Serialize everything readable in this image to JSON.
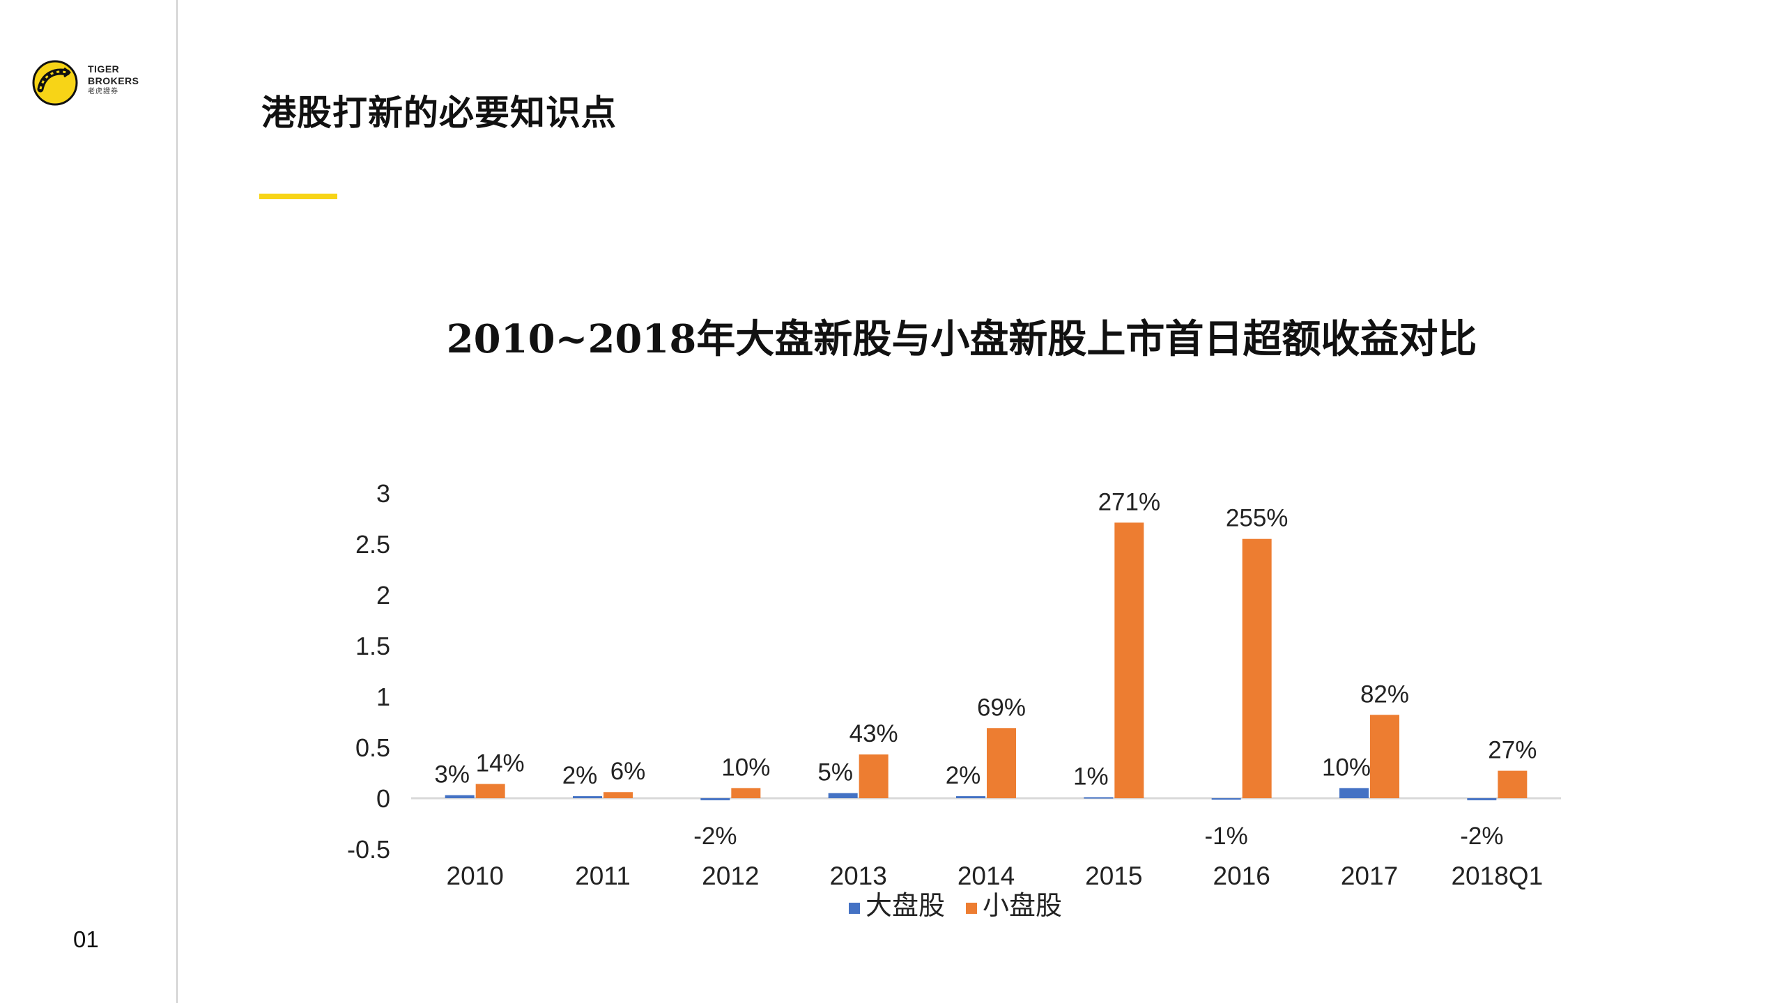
{
  "header": {
    "logo": {
      "brand_line1": "TIGER",
      "brand_line2": "BROKERS",
      "brand_cn": "老虎證券",
      "accent_color": "#f7d417",
      "icon": "tiger-logo-icon"
    },
    "title": "港股打新的必要知识点",
    "accent_color": "#f7d417"
  },
  "page_number": "01",
  "chart_data": {
    "type": "bar",
    "title": "2010~2018年大盘新股与小盘新股上市首日超额收益对比",
    "categories": [
      "2010",
      "2011",
      "2012",
      "2013",
      "2014",
      "2015",
      "2016",
      "2017",
      "2018Q1"
    ],
    "series": [
      {
        "name": "大盘股",
        "color": "#4472c4",
        "values": [
          0.03,
          0.02,
          -0.02,
          0.05,
          0.02,
          0.01,
          -0.01,
          0.1,
          -0.02
        ],
        "labels": [
          "3%",
          "2%",
          "-2%",
          "5%",
          "2%",
          "1%",
          "-1%",
          "10%",
          "-2%"
        ]
      },
      {
        "name": "小盘股",
        "color": "#ed7d31",
        "values": [
          0.14,
          0.06,
          0.1,
          0.43,
          0.69,
          2.71,
          2.55,
          0.82,
          0.27
        ],
        "labels": [
          "14%",
          "6%",
          "10%",
          "43%",
          "69%",
          "271%",
          "255%",
          "82%",
          "27%"
        ]
      }
    ],
    "y_ticks": [
      "3",
      "2.5",
      "2",
      "1.5",
      "1",
      "0.5",
      "0",
      "-0.5"
    ],
    "ylim": [
      -0.5,
      3
    ],
    "grid": false,
    "legend": "bottom"
  }
}
